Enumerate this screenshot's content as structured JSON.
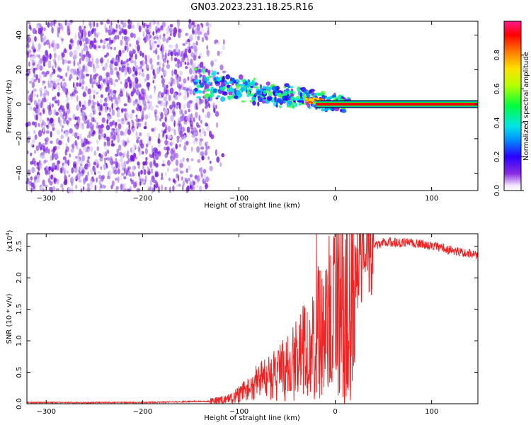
{
  "title": "GN03.2023.231.18.25.R16",
  "chart_data": [
    {
      "type": "heatmap",
      "xlabel": "Height of straight line (km)",
      "ylabel": "Frequency (Hz)",
      "xlim": [
        -320,
        148
      ],
      "ylim": [
        -50,
        48
      ],
      "xticks": [
        -300,
        -200,
        -100,
        0,
        100
      ],
      "yticks": [
        -40,
        -20,
        0,
        20,
        40
      ],
      "xtick_labels": [
        "−300",
        "−200",
        "−100",
        "0",
        "100"
      ],
      "ytick_labels": [
        "−40",
        "−20",
        "0",
        "20",
        "40"
      ],
      "grid": false,
      "colorbar": {
        "label": "Normalized spectral amplitude",
        "range": [
          0,
          1
        ],
        "ticks": [
          0.0,
          0.2,
          0.4,
          0.6,
          0.8
        ],
        "tick_labels": [
          "0.0",
          "0.2",
          "0.4",
          "0.6",
          "0.8"
        ],
        "colormap": "rainbow (white-violet-blue-cyan-green-yellow-red-magenta)"
      },
      "features": {
        "noise_region_x": [
          -320,
          -120
        ],
        "signal_line_frequency_hz": 0,
        "signal_line_start_km": -20,
        "cluster_region_x": [
          -145,
          15
        ],
        "cluster_frequency_range_hz": [
          -12,
          22
        ]
      }
    },
    {
      "type": "line",
      "xlabel": "Height of straight line (km)",
      "ylabel": "SNR (10 * v/v)",
      "y_multiplier_label": "(x10",
      "y_multiplier_exp": "4",
      "y_multiplier_close": ")",
      "xlim": [
        -320,
        148
      ],
      "ylim": [
        0,
        2.7
      ],
      "xticks": [
        -300,
        -200,
        -100,
        0,
        100
      ],
      "yticks": [
        0.0,
        0.5,
        1.0,
        1.5,
        2.0,
        2.5
      ],
      "xtick_labels": [
        "−300",
        "−200",
        "−100",
        "0",
        "100"
      ],
      "ytick_labels": [
        "0.0",
        "0.5",
        "1.0",
        "1.5",
        "2.0",
        "2.5"
      ],
      "series_color": "#ee2222",
      "grid": false,
      "keypoints": {
        "x": [
          -320,
          -200,
          -130,
          -110,
          -95,
          -80,
          -60,
          -40,
          -25,
          -15,
          -5,
          5,
          15,
          30,
          50,
          80,
          110,
          148
        ],
        "y": [
          0.02,
          0.02,
          0.04,
          0.08,
          0.25,
          0.45,
          0.55,
          0.75,
          1.0,
          1.3,
          1.45,
          1.6,
          1.9,
          2.4,
          2.57,
          2.56,
          2.48,
          2.35
        ]
      }
    }
  ]
}
